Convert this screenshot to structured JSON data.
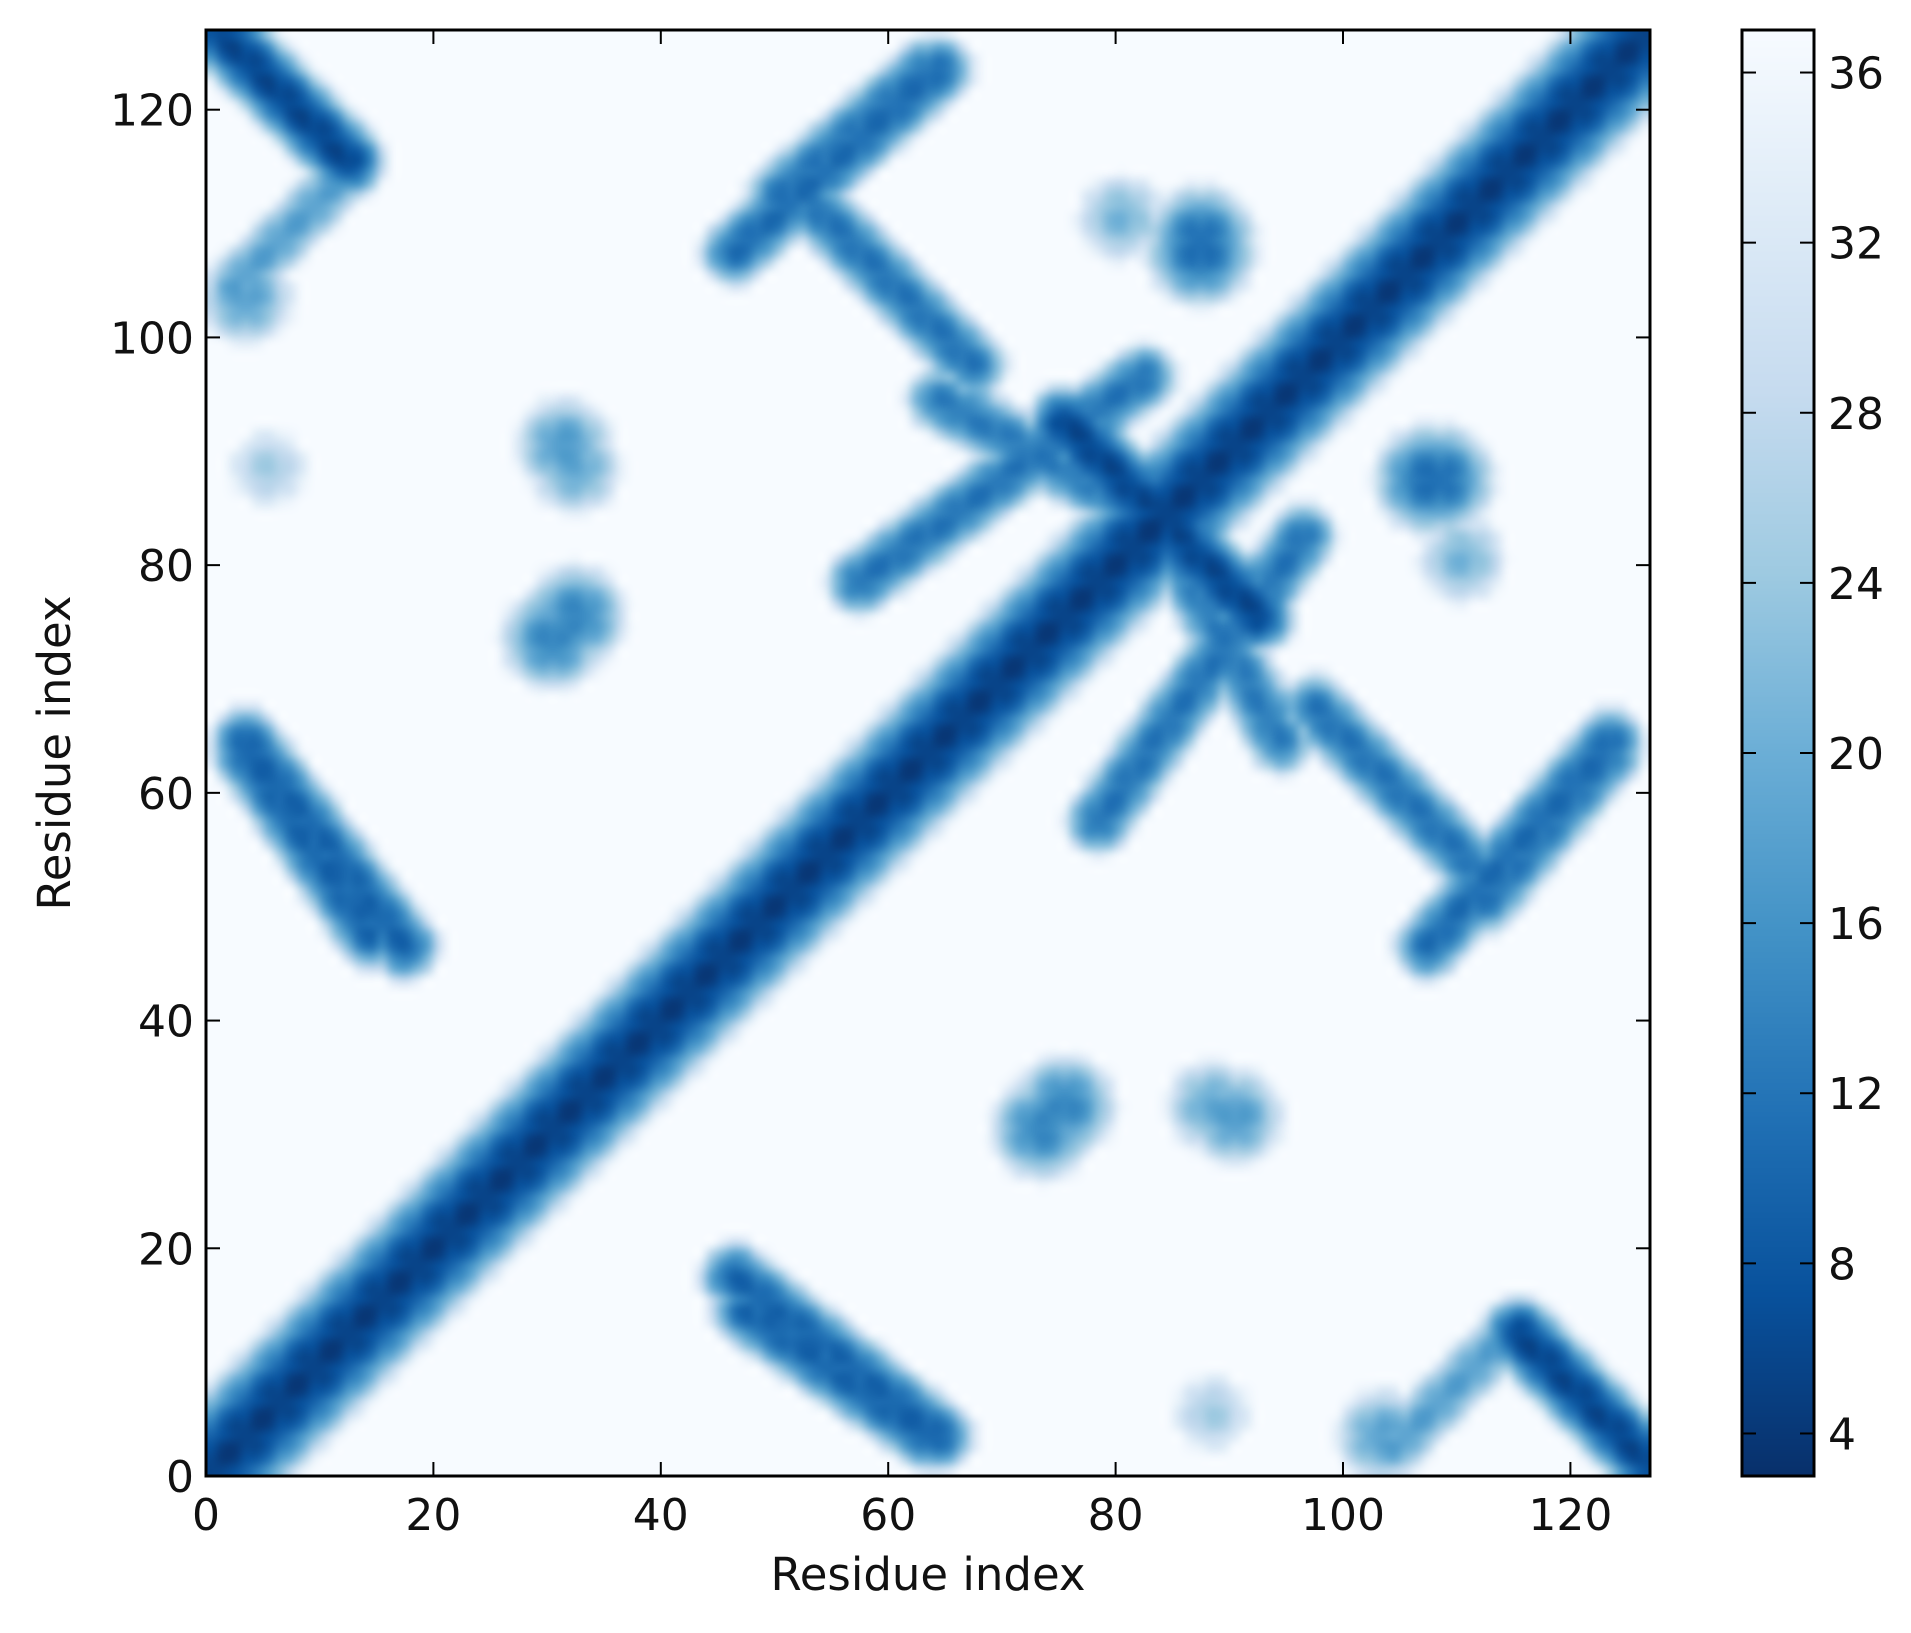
{
  "chart_data": {
    "type": "heatmap",
    "title": "",
    "xlabel": "Residue index",
    "ylabel": "Residue index",
    "n_residues": 127,
    "xlim": [
      0,
      127
    ],
    "ylim": [
      0,
      127
    ],
    "x_ticks": [
      0,
      20,
      40,
      60,
      80,
      100,
      120
    ],
    "y_ticks": [
      0,
      20,
      40,
      60,
      80,
      100,
      120
    ],
    "colorbar": {
      "ticks": [
        4,
        8,
        12,
        16,
        20,
        24,
        28,
        32,
        36
      ],
      "min": 3,
      "max": 37,
      "colormap": "Blues_r",
      "colors": [
        "#08306b",
        "#08519c",
        "#2171b5",
        "#4292c6",
        "#6baed6",
        "#9ecae1",
        "#c6dbef",
        "#deebf7",
        "#f7fbff"
      ]
    },
    "grid": false,
    "symmetric": true,
    "contact_features": [
      {
        "kind": "diagonal",
        "i": [
          0,
          127
        ],
        "j": [
          0,
          127
        ],
        "value": 4
      },
      {
        "kind": "antidiagonal",
        "i": [
          0,
          12
        ],
        "j": [
          127,
          115
        ],
        "value": 5
      },
      {
        "kind": "antidiagonal",
        "i": [
          2,
          12
        ],
        "j": [
          104,
          114
        ],
        "value": 17
      },
      {
        "kind": "antidiagonal",
        "i": [
          75,
          83
        ],
        "j": [
          92,
          84
        ],
        "value": 5
      },
      {
        "kind": "antidiagonal",
        "i": [
          3,
          14
        ],
        "j": [
          63,
          47
        ],
        "value": 9
      },
      {
        "kind": "antidiagonal",
        "i": [
          46,
          64
        ],
        "j": [
          17,
          3
        ],
        "value": 9
      },
      {
        "kind": "antidiagonal",
        "i": [
          46,
          64
        ],
        "j": [
          107,
          123
        ],
        "value": 10
      },
      {
        "kind": "antidiagonal",
        "i": [
          57,
          82
        ],
        "j": [
          78,
          96
        ],
        "value": 11
      },
      {
        "kind": "antidiagonal",
        "i": [
          84,
          94
        ],
        "j": [
          82,
          64
        ],
        "value": 12
      },
      {
        "kind": "antidiagonal",
        "i": [
          97,
          112
        ],
        "j": [
          67,
          52
        ],
        "value": 11
      },
      {
        "kind": "antidiagonal",
        "i": [
          112,
          123
        ],
        "j": [
          50,
          63
        ],
        "value": 11
      },
      {
        "kind": "blob",
        "i": 32,
        "j": 75,
        "value": 13
      },
      {
        "kind": "blob",
        "i": 31,
        "j": 90,
        "value": 16
      },
      {
        "kind": "blob",
        "i": 73,
        "j": 30,
        "value": 13
      },
      {
        "kind": "blob",
        "i": 88,
        "j": 32,
        "value": 18
      },
      {
        "kind": "blob",
        "i": 87,
        "j": 107,
        "value": 10
      },
      {
        "kind": "blob",
        "i": 108,
        "j": 87,
        "value": 10
      },
      {
        "kind": "blob",
        "i": 103,
        "j": 3,
        "value": 17
      },
      {
        "kind": "blob",
        "i": 5,
        "j": 88,
        "value": 24
      },
      {
        "kind": "blob",
        "i": 80,
        "j": 110,
        "value": 20
      }
    ]
  }
}
